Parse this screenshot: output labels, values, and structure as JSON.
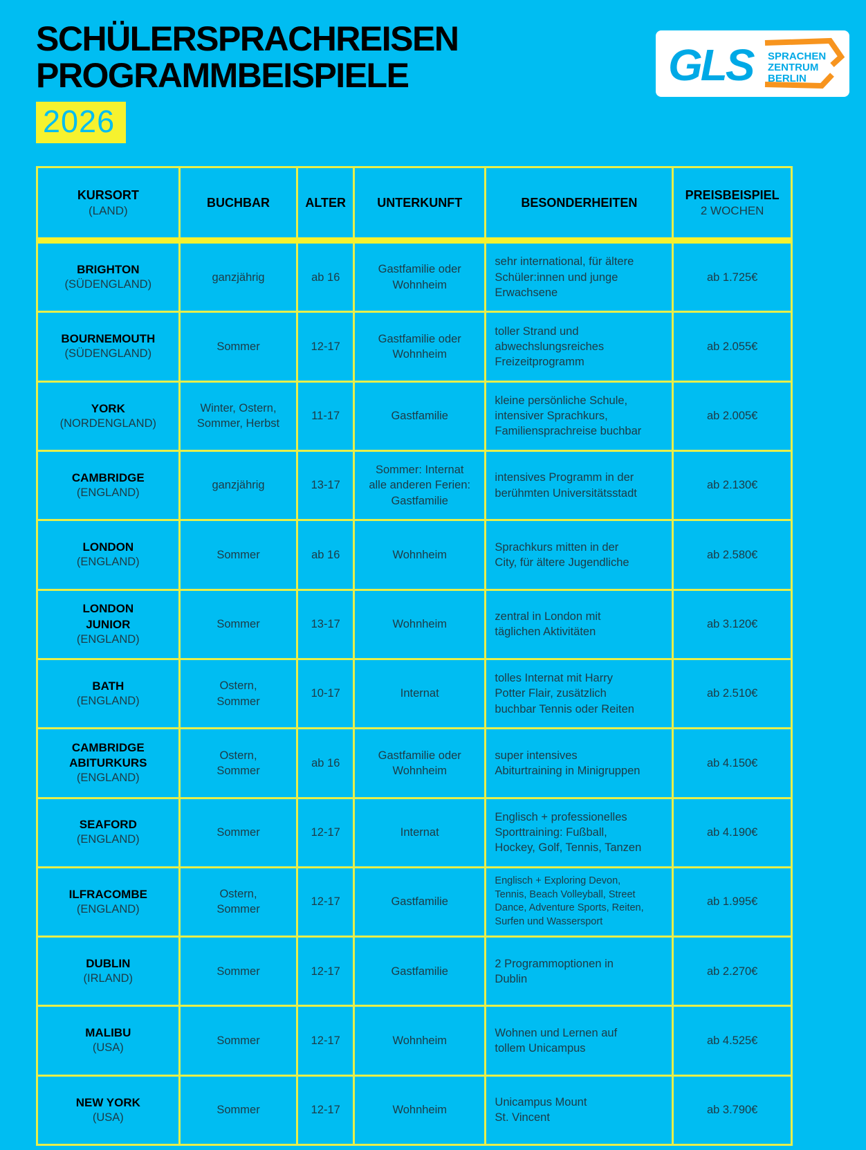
{
  "header": {
    "title_line1": "SCHÜLERSPRACHREISEN",
    "title_line2": "PROGRAMMBEISPIELE",
    "year": "2026"
  },
  "logo": {
    "brand": "GLS",
    "tagline": [
      "SPRACHEN",
      "ZENTRUM",
      "BERLIN"
    ]
  },
  "colors": {
    "background": "#00BDF2",
    "table_border": "#E7EF4A",
    "highlight_yellow": "#F6F22E",
    "cell_text": "#1D3B46",
    "logo_cyan": "#00A9E6",
    "logo_orange": "#F7941E"
  },
  "table": {
    "headers": [
      {
        "line1": "KURSORT",
        "line2": "(LAND)"
      },
      {
        "line1": "BUCHBAR"
      },
      {
        "line1": "ALTER"
      },
      {
        "line1": "UNTERKUNFT"
      },
      {
        "line1": "BESONDERHEITEN"
      },
      {
        "line1": "PREISBEISPIEL",
        "line2": "2 WOCHEN"
      }
    ],
    "rows": [
      {
        "city": "BRIGHTON",
        "country": "(SÜDENGLAND)",
        "buchbar": "ganzjährig",
        "alter": "ab 16",
        "unterkunft": "Gastfamilie oder\nWohnheim",
        "besonderheiten": "sehr international, für ältere\nSchüler:innen und junge\nErwachsene",
        "preis": "ab 1.725€"
      },
      {
        "city": "BOURNEMOUTH",
        "country": "(SÜDENGLAND)",
        "buchbar": "Sommer",
        "alter": "12-17",
        "unterkunft": "Gastfamilie oder\nWohnheim",
        "besonderheiten": "toller Strand und\nabwechslungsreiches\nFreizeitprogramm",
        "preis": "ab 2.055€"
      },
      {
        "city": "YORK",
        "country": "(NORDENGLAND)",
        "buchbar": "Winter, Ostern,\nSommer, Herbst",
        "alter": "11-17",
        "unterkunft": "Gastfamilie",
        "besonderheiten": "kleine persönliche Schule,\nintensiver Sprachkurs,\nFamiliensprachreise buchbar",
        "preis": "ab 2.005€"
      },
      {
        "city": "CAMBRIDGE",
        "country": "(ENGLAND)",
        "buchbar": "ganzjährig",
        "alter": "13-17",
        "unterkunft": "Sommer: Internat\nalle anderen Ferien:\nGastfamilie",
        "besonderheiten": "intensives Programm in der\nberühmten Universitätsstadt",
        "preis": "ab 2.130€"
      },
      {
        "city": "LONDON",
        "country": "(ENGLAND)",
        "buchbar": "Sommer",
        "alter": "ab 16",
        "unterkunft": "Wohnheim",
        "besonderheiten": "Sprachkurs mitten in der\nCity, für ältere Jugendliche",
        "preis": "ab 2.580€"
      },
      {
        "city": "LONDON\nJUNIOR",
        "country": "(ENGLAND)",
        "buchbar": "Sommer",
        "alter": "13-17",
        "unterkunft": "Wohnheim",
        "besonderheiten": "zentral in London mit\ntäglichen Aktivitäten",
        "preis": "ab 3.120€"
      },
      {
        "city": "BATH",
        "country": "(ENGLAND)",
        "buchbar": "Ostern,\nSommer",
        "alter": "10-17",
        "unterkunft": "Internat",
        "besonderheiten": "tolles Internat mit Harry\nPotter Flair, zusätzlich\nbuchbar Tennis oder Reiten",
        "preis": "ab 2.510€"
      },
      {
        "city": "CAMBRIDGE\nABITURKURS",
        "country": "(ENGLAND)",
        "buchbar": "Ostern,\nSommer",
        "alter": "ab 16",
        "unterkunft": "Gastfamilie oder\nWohnheim",
        "besonderheiten": "super intensives\nAbiturtraining in Minigruppen",
        "preis": "ab 4.150€"
      },
      {
        "city": "SEAFORD",
        "country": "(ENGLAND)",
        "buchbar": "Sommer",
        "alter": "12-17",
        "unterkunft": "Internat",
        "besonderheiten": "Englisch + professionelles\nSporttraining: Fußball,\nHockey, Golf, Tennis, Tanzen",
        "preis": "ab 4.190€"
      },
      {
        "city": "ILFRACOMBE",
        "country": "(ENGLAND)",
        "buchbar": "Ostern,\nSommer",
        "alter": "12-17",
        "unterkunft": "Gastfamilie",
        "besonderheiten": "Englisch + Exploring Devon,\nTennis, Beach Volleyball, Street\nDance, Adventure Sports, Reiten,\nSurfen und Wassersport",
        "preis": "ab 1.995€"
      },
      {
        "city": "DUBLIN",
        "country": "(IRLAND)",
        "buchbar": "Sommer",
        "alter": "12-17",
        "unterkunft": "Gastfamilie",
        "besonderheiten": "2 Programmoptionen in\nDublin",
        "preis": "ab 2.270€"
      },
      {
        "city": "MALIBU",
        "country": "(USA)",
        "buchbar": "Sommer",
        "alter": "12-17",
        "unterkunft": "Wohnheim",
        "besonderheiten": "Wohnen und Lernen auf\ntollem Unicampus",
        "preis": "ab 4.525€"
      },
      {
        "city": "NEW YORK",
        "country": "(USA)",
        "buchbar": "Sommer",
        "alter": "12-17",
        "unterkunft": "Wohnheim",
        "besonderheiten": "Unicampus Mount\nSt. Vincent",
        "preis": "ab 3.790€"
      }
    ]
  }
}
